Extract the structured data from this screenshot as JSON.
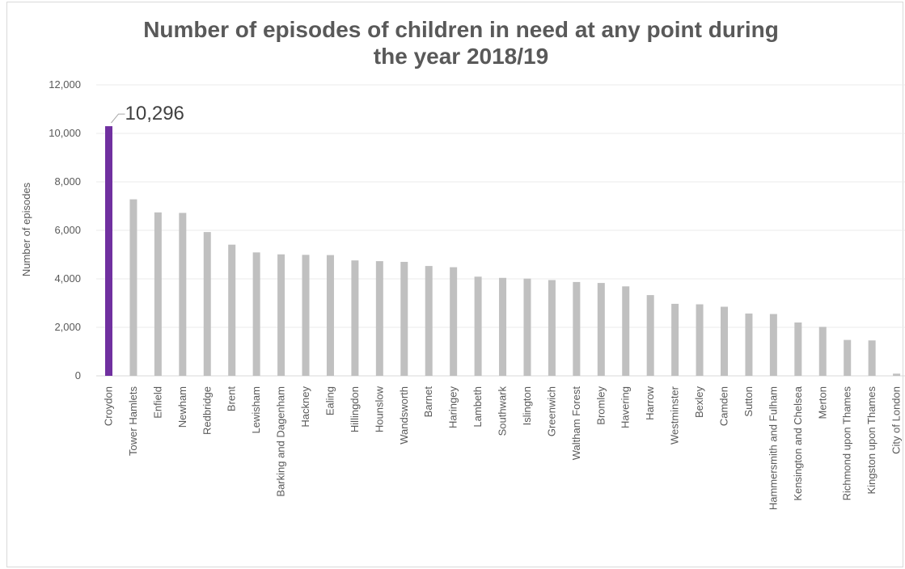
{
  "chart_data": {
    "type": "bar",
    "title_lines": [
      "Number of episodes of children in need at any point during",
      "the year 2018/19"
    ],
    "ylabel": "Number of episodes",
    "xlabel": "",
    "ylim": [
      0,
      12000
    ],
    "yticks": [
      0,
      2000,
      4000,
      6000,
      8000,
      10000,
      12000
    ],
    "ytick_labels": [
      "0",
      "2,000",
      "4,000",
      "6,000",
      "8,000",
      "10,000",
      "12,000"
    ],
    "grid": true,
    "categories": [
      "Croydon",
      "Tower Hamlets",
      "Enfield",
      "Newham",
      "Redbridge",
      "Brent",
      "Lewisham",
      "Barking and Dagenham",
      "Hackney",
      "Ealing",
      "Hillingdon",
      "Hounslow",
      "Wandsworth",
      "Barnet",
      "Haringey",
      "Lambeth",
      "Southwark",
      "Islington",
      "Greenwich",
      "Waltham Forest",
      "Bromley",
      "Havering",
      "Harrow",
      "Westminster",
      "Bexley",
      "Camden",
      "Sutton",
      "Hammersmith and Fulham",
      "Kensington and Chelsea",
      "Merton",
      "Richmond upon Thames",
      "Kingston upon Thames",
      "City of London"
    ],
    "values": [
      10296,
      7280,
      6740,
      6720,
      5930,
      5410,
      5090,
      5010,
      4990,
      4980,
      4760,
      4730,
      4700,
      4530,
      4480,
      4090,
      4040,
      4010,
      3950,
      3870,
      3830,
      3690,
      3330,
      2970,
      2950,
      2850,
      2570,
      2550,
      2200,
      2020,
      1480,
      1460,
      90
    ],
    "highlight": {
      "category": "Croydon",
      "label": "10,296"
    },
    "colors": {
      "highlight": "#7030A0",
      "bars": "#C0C0C0",
      "grid": "#EBEBEB",
      "text": "#595959"
    }
  }
}
